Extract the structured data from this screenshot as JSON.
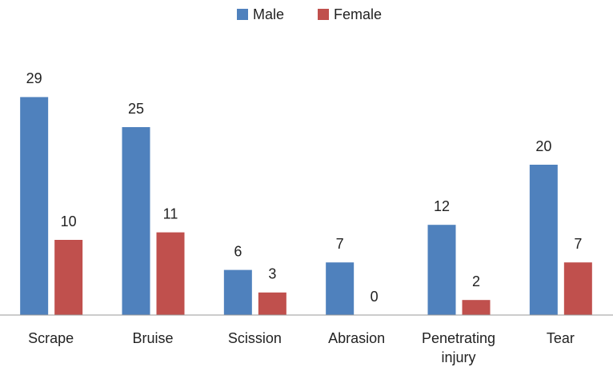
{
  "chart_data": {
    "type": "bar",
    "categories": [
      "Scrape",
      "Bruise",
      "Scission",
      "Abrasion",
      "Penetrating injury",
      "Tear"
    ],
    "series": [
      {
        "name": "Male",
        "color": "#4f81bd",
        "values": [
          29,
          25,
          6,
          7,
          12,
          20
        ]
      },
      {
        "name": "Female",
        "color": "#c0504d",
        "values": [
          10,
          11,
          3,
          0,
          2,
          7
        ]
      }
    ],
    "ylim": [
      0,
      30
    ],
    "legend": "top"
  }
}
